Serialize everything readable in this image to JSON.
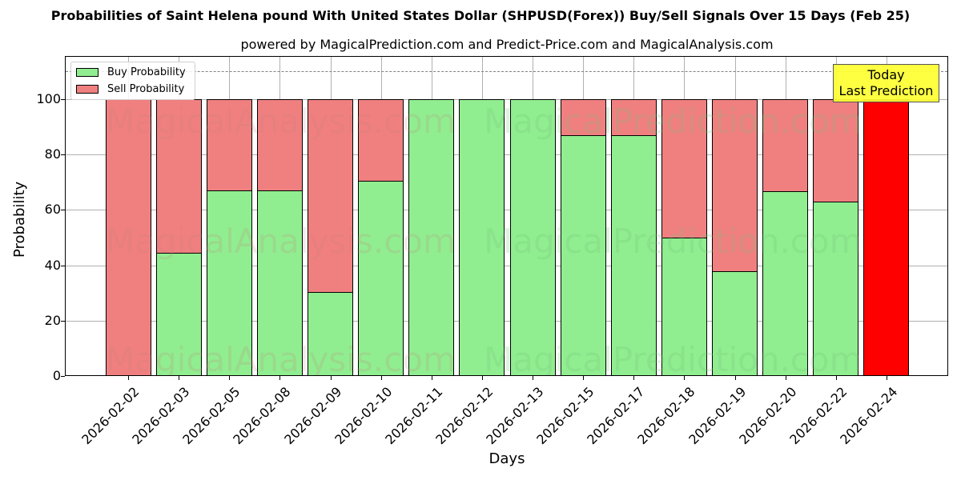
{
  "header": {
    "title": "Probabilities of Saint Helena pound With United States Dollar (SHPUSD(Forex)) Buy/Sell Signals Over 15 Days (Feb 25)",
    "subtitle": "powered by MagicalPrediction.com and Predict-Price.com and MagicalAnalysis.com"
  },
  "legend": {
    "buy_label": "Buy Probability",
    "sell_label": "Sell Probability"
  },
  "annotation": {
    "line1": "Today",
    "line2": "Last Prediction"
  },
  "watermarks": [
    "MagicalAnalysis.com",
    "MagicalPrediction.com"
  ],
  "colors": {
    "buy": "#90ee90",
    "sell": "#f08080",
    "today": "#ff0000",
    "annotation_bg": "#ffff33"
  },
  "chart_data": {
    "type": "bar",
    "stacked": true,
    "title": "Probabilities of Saint Helena pound With United States Dollar (SHPUSD(Forex)) Buy/Sell Signals Over 15 Days (Feb 25)",
    "subtitle": "powered by MagicalPrediction.com and Predict-Price.com and MagicalAnalysis.com",
    "xlabel": "Days",
    "ylabel": "Probability",
    "ylim": [
      0,
      115
    ],
    "yticks": [
      0,
      20,
      40,
      60,
      80,
      100
    ],
    "grid": true,
    "legend_position": "upper left",
    "reference_line": {
      "y": 110,
      "style": "dashed",
      "color": "#808080"
    },
    "categories": [
      "2026-02-02",
      "2026-02-03",
      "2026-02-05",
      "2026-02-08",
      "2026-02-09",
      "2026-02-10",
      "2026-02-11",
      "2026-02-12",
      "2026-02-13",
      "2026-02-15",
      "2026-02-17",
      "2026-02-18",
      "2026-02-19",
      "2026-02-20",
      "2026-02-22",
      "2026-02-24"
    ],
    "series": [
      {
        "name": "Buy Probability",
        "color": "#90ee90",
        "values": [
          0,
          44.5,
          67.1,
          67.1,
          30.3,
          70.6,
          100,
          100,
          100,
          87.1,
          87.1,
          50.1,
          37.8,
          66.8,
          62.9,
          0
        ]
      },
      {
        "name": "Sell Probability",
        "color": "#f08080",
        "values": [
          100,
          55.5,
          32.9,
          32.9,
          69.7,
          29.4,
          0,
          0,
          0,
          12.9,
          12.9,
          49.9,
          62.2,
          33.2,
          37.1,
          100
        ]
      }
    ],
    "highlight": {
      "category": "2026-02-24",
      "color": "#ff0000",
      "label": "Today\nLast Prediction"
    }
  }
}
